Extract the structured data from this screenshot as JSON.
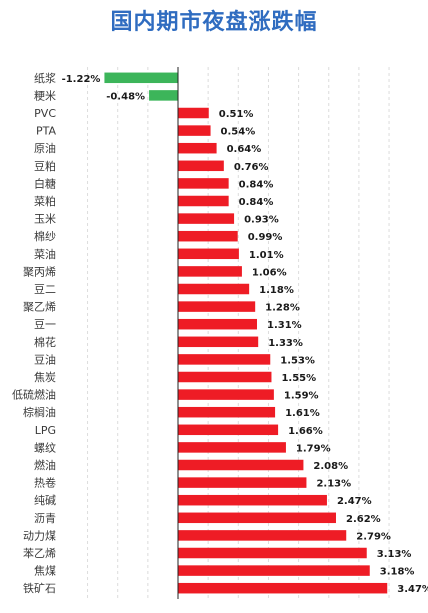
{
  "title": "国内期市夜盘涨跌幅",
  "chart_data": {
    "type": "bar",
    "orientation": "horizontal",
    "title": "国内期市夜盘涨跌幅",
    "xlabel": "",
    "ylabel": "",
    "value_unit": "%",
    "xlim": [
      -2.5,
      4.0
    ],
    "grid": true,
    "positive_color": "#ee1c25",
    "negative_color": "#3cb55a",
    "categories": [
      "纸浆",
      "粳米",
      "PVC",
      "PTA",
      "原油",
      "豆粕",
      "白糖",
      "菜粕",
      "玉米",
      "棉纱",
      "菜油",
      "聚丙烯",
      "豆二",
      "聚乙烯",
      "豆一",
      "棉花",
      "豆油",
      "焦炭",
      "低硫燃油",
      "棕榈油",
      "LPG",
      "螺纹",
      "燃油",
      "热卷",
      "纯碱",
      "沥青",
      "动力煤",
      "苯乙烯",
      "焦煤",
      "铁矿石"
    ],
    "values": [
      -1.22,
      -0.48,
      0.51,
      0.54,
      0.64,
      0.76,
      0.84,
      0.84,
      0.93,
      0.99,
      1.01,
      1.06,
      1.18,
      1.28,
      1.31,
      1.33,
      1.53,
      1.55,
      1.59,
      1.61,
      1.66,
      1.79,
      2.08,
      2.13,
      2.47,
      2.62,
      2.79,
      3.13,
      3.18,
      3.47
    ],
    "labels": [
      "-1.22%",
      "-0.48%",
      "0.51%",
      "0.54%",
      "0.64%",
      "0.76%",
      "0.84%",
      "0.84%",
      "0.93%",
      "0.99%",
      "1.01%",
      "1.06%",
      "1.18%",
      "1.28%",
      "1.31%",
      "1.33%",
      "1.53%",
      "1.55%",
      "1.59%",
      "1.61%",
      "1.66%",
      "1.79%",
      "2.08%",
      "2.13%",
      "2.47%",
      "2.62%",
      "2.79%",
      "3.13%",
      "3.18%",
      "3.47%"
    ]
  }
}
